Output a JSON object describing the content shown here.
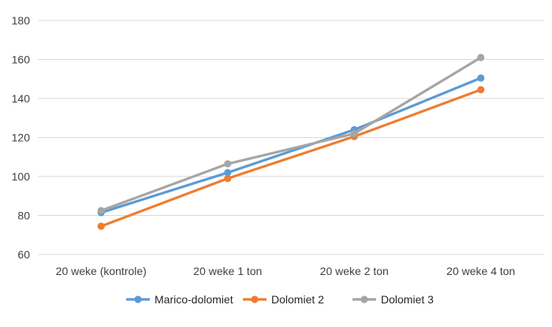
{
  "chart_data": {
    "type": "line",
    "categories": [
      "20 weke (kontrole)",
      "20 weke 1 ton",
      "20 weke 2 ton",
      "20 weke 4 ton"
    ],
    "series": [
      {
        "name": "Marico-dolomiet",
        "color": "#5b9bd5",
        "values": [
          81.5,
          102,
          124,
          150.5
        ]
      },
      {
        "name": "Dolomiet 2",
        "color": "#ed7d31",
        "values": [
          74.5,
          99,
          120.5,
          144.5
        ]
      },
      {
        "name": "Dolomiet 3",
        "color": "#a5a5a5",
        "values": [
          82.5,
          106.5,
          122,
          161
        ]
      }
    ],
    "ylim": [
      60,
      180
    ],
    "yticks": [
      "60",
      "80",
      "100",
      "120",
      "140",
      "160",
      "180"
    ],
    "grid": true,
    "legend": "bottom"
  }
}
